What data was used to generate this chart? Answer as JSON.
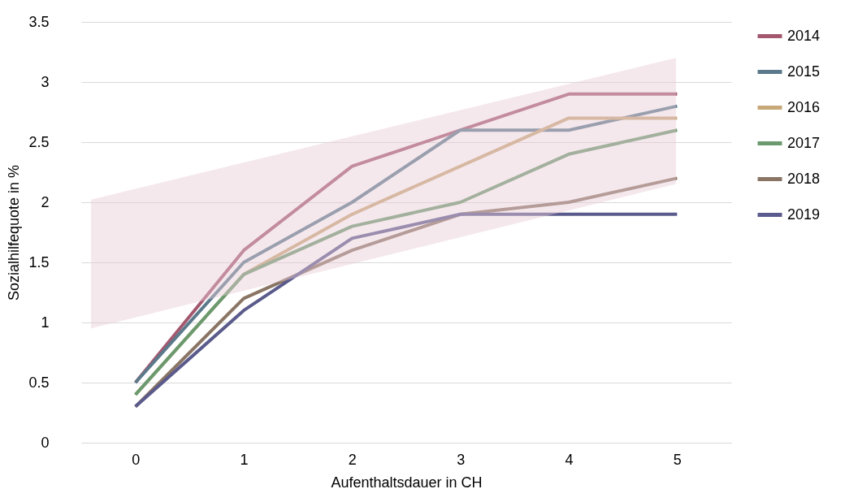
{
  "chart_data": {
    "type": "line",
    "xlabel": "Aufenthaltsdauer in CH",
    "ylabel": "Sozialhilfequote in %",
    "categories": [
      "0",
      "1",
      "2",
      "3",
      "4",
      "5"
    ],
    "series": [
      {
        "name": "2014",
        "color": "#a3586f",
        "values": [
          0.5,
          1.6,
          2.3,
          2.6,
          2.9,
          2.9
        ]
      },
      {
        "name": "2015",
        "color": "#5a7a8c",
        "values": [
          0.5,
          1.5,
          2.0,
          2.6,
          2.6,
          2.8
        ]
      },
      {
        "name": "2016",
        "color": "#c8a878",
        "values": [
          0.4,
          1.4,
          1.9,
          2.3,
          2.7,
          2.7
        ]
      },
      {
        "name": "2017",
        "color": "#6a9a6e",
        "values": [
          0.4,
          1.4,
          1.8,
          2.0,
          2.4,
          2.6
        ]
      },
      {
        "name": "2018",
        "color": "#8a7565",
        "values": [
          0.3,
          1.2,
          1.6,
          1.9,
          2.0,
          2.2
        ]
      },
      {
        "name": "2019",
        "color": "#5a5a8c",
        "values": [
          0.3,
          1.1,
          1.7,
          1.9,
          1.9,
          1.9
        ]
      }
    ],
    "ylim": [
      0,
      3.5
    ],
    "yticks": [
      0,
      0.5,
      1,
      1.5,
      2,
      2.5,
      3,
      3.5
    ],
    "grid": "y",
    "legend": "right",
    "line_style": "solid",
    "marker": "none"
  }
}
